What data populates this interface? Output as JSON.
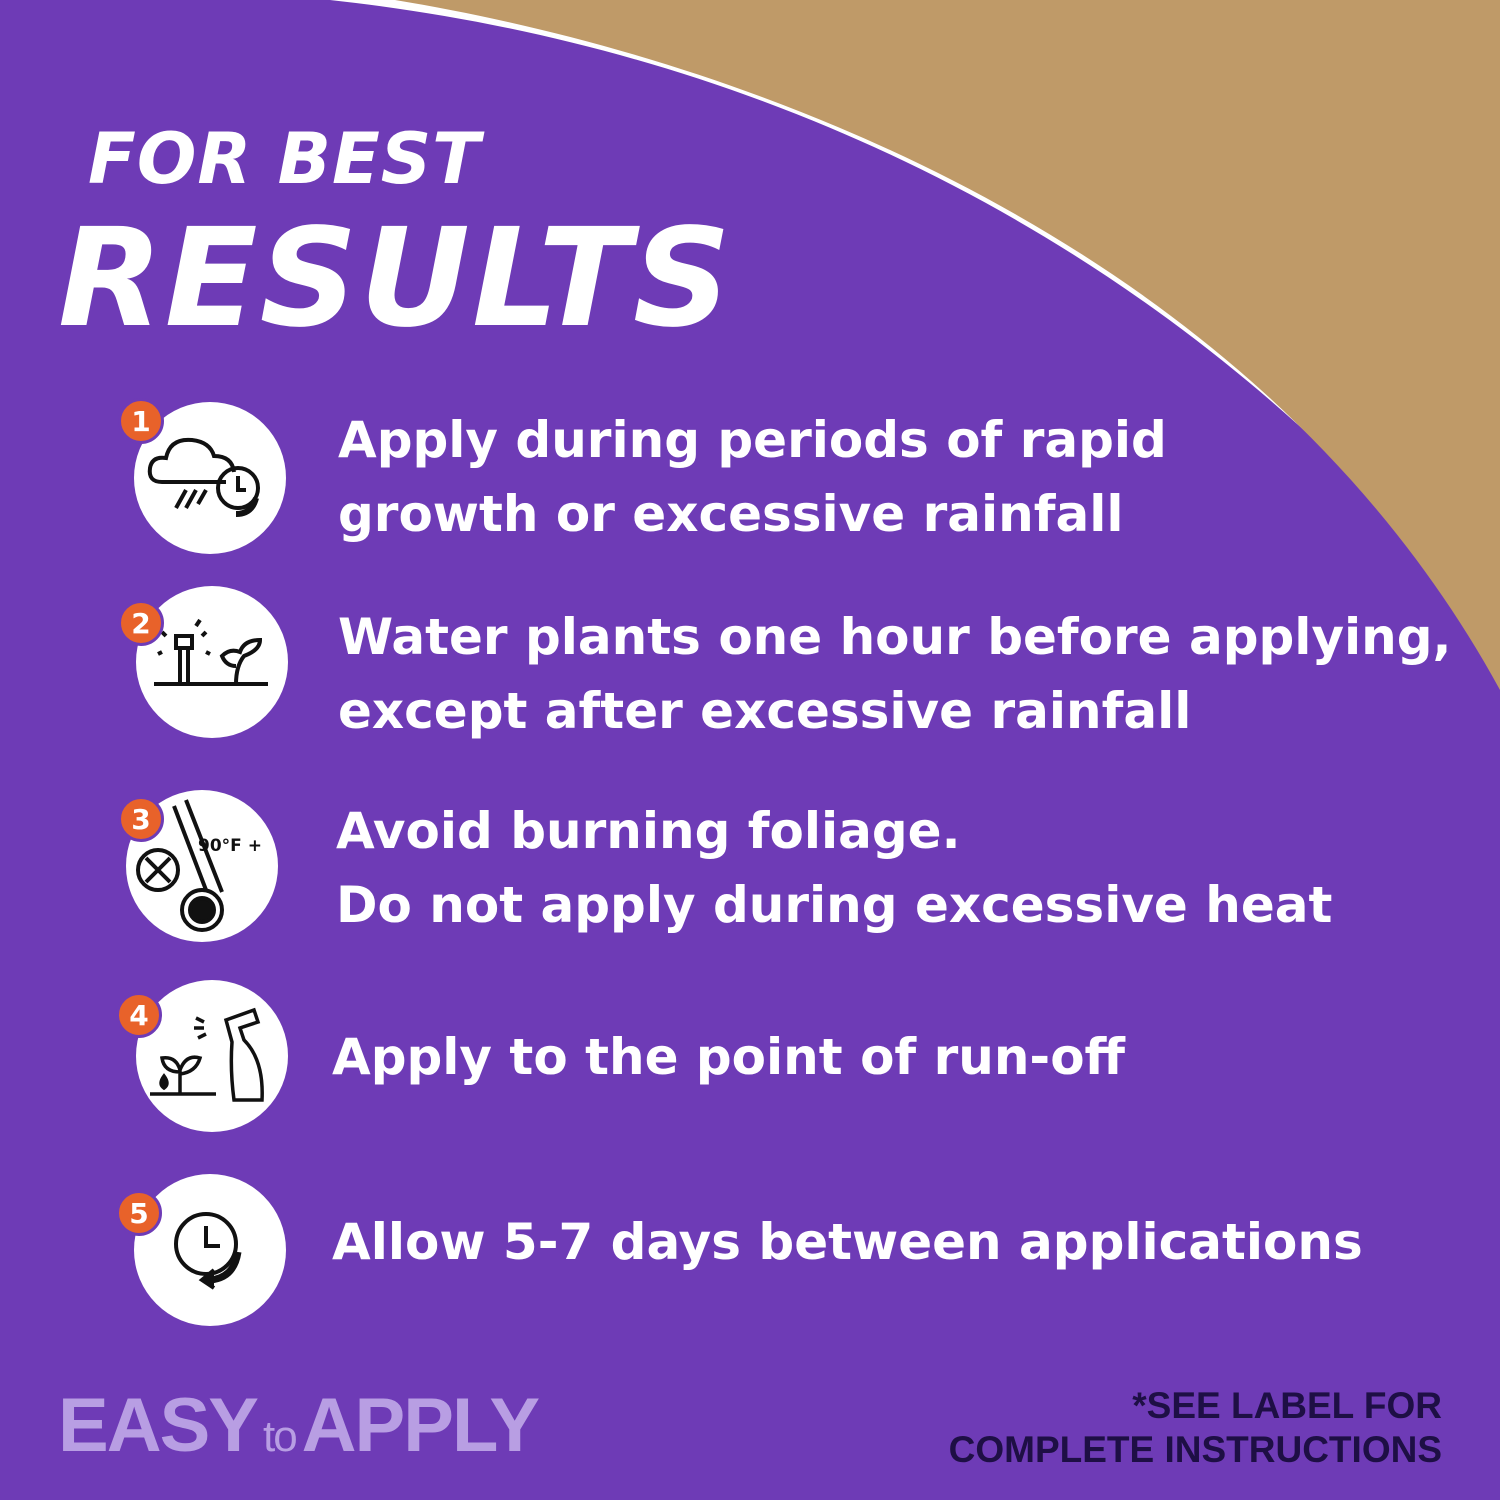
{
  "colors": {
    "background": "#6e3bb6",
    "tan": "#bf9a68",
    "badge": "#e8622a",
    "accent_text": "#b89ee3",
    "note_text": "#1e0f45"
  },
  "header": {
    "line1": "FOR BEST",
    "line2": "RESULTS"
  },
  "items": [
    {
      "number": "1",
      "icon": "rain-cloud-clock-icon",
      "line1": "Apply during periods of rapid",
      "line2": "growth or excessive rainfall"
    },
    {
      "number": "2",
      "icon": "sprinkler-plant-icon",
      "line1": "Water plants one hour before applying,",
      "line2": "except after excessive rainfall"
    },
    {
      "number": "3",
      "icon": "thermometer-heat-icon",
      "icon_label": "90°F +",
      "line1": "Avoid burning foliage.",
      "line2": "Do not apply during excessive heat"
    },
    {
      "number": "4",
      "icon": "spray-bottle-plant-icon",
      "line1": "Apply to the point of run-off",
      "line2": ""
    },
    {
      "number": "5",
      "icon": "clock-repeat-icon",
      "line1": "Allow 5-7 days between applications",
      "line2": ""
    }
  ],
  "footer": {
    "easy": "EASY",
    "to": "to",
    "apply": "APPLY",
    "note_line1": "*SEE LABEL FOR",
    "note_line2": "COMPLETE INSTRUCTIONS"
  }
}
